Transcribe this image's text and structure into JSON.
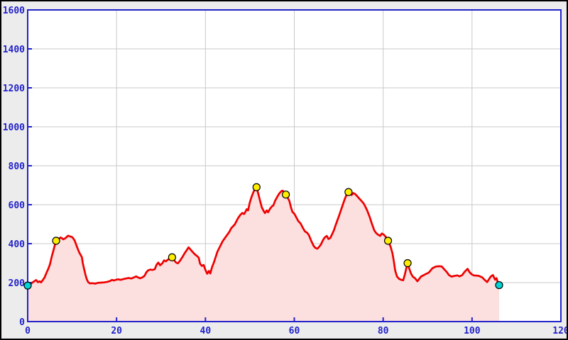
{
  "chart_data": {
    "type": "area",
    "title": "",
    "xlabel": "",
    "ylabel": "",
    "xlim": [
      0,
      120
    ],
    "ylim": [
      0,
      1600
    ],
    "x_ticks": [
      0,
      20,
      40,
      60,
      80,
      100,
      120
    ],
    "y_ticks": [
      0,
      200,
      400,
      600,
      800,
      1000,
      1200,
      1400,
      1600
    ],
    "grid": true,
    "legend": "none",
    "series": [
      {
        "name": "elevation-profile",
        "points": [
          [
            0,
            185
          ],
          [
            0.4,
            190
          ],
          [
            0.8,
            196
          ],
          [
            1.3,
            204
          ],
          [
            1.9,
            213
          ],
          [
            2.3,
            202
          ],
          [
            2.7,
            207
          ],
          [
            3.0,
            201
          ],
          [
            3.4,
            213
          ],
          [
            3.8,
            227
          ],
          [
            4.2,
            249
          ],
          [
            4.6,
            269
          ],
          [
            5.0,
            293
          ],
          [
            5.4,
            332
          ],
          [
            5.8,
            366
          ],
          [
            6.1,
            392
          ],
          [
            6.4,
            415
          ],
          [
            6.7,
            420
          ],
          [
            7.1,
            426
          ],
          [
            7.4,
            432
          ],
          [
            7.7,
            428
          ],
          [
            8.0,
            422
          ],
          [
            8.4,
            427
          ],
          [
            8.8,
            435
          ],
          [
            9.1,
            441
          ],
          [
            9.5,
            437
          ],
          [
            9.9,
            435
          ],
          [
            10.2,
            429
          ],
          [
            10.6,
            415
          ],
          [
            11.0,
            390
          ],
          [
            11.3,
            372
          ],
          [
            11.6,
            355
          ],
          [
            11.9,
            343
          ],
          [
            12.2,
            330
          ],
          [
            12.4,
            300
          ],
          [
            12.7,
            270
          ],
          [
            13.0,
            240
          ],
          [
            13.3,
            218
          ],
          [
            13.6,
            203
          ],
          [
            14.0,
            196
          ],
          [
            14.6,
            197
          ],
          [
            15.2,
            195
          ],
          [
            15.8,
            199
          ],
          [
            16.5,
            200
          ],
          [
            17.2,
            201
          ],
          [
            17.9,
            204
          ],
          [
            18.5,
            208
          ],
          [
            19.0,
            214
          ],
          [
            19.4,
            211
          ],
          [
            19.9,
            215
          ],
          [
            20.4,
            217
          ],
          [
            20.9,
            214
          ],
          [
            21.5,
            218
          ],
          [
            22.1,
            221
          ],
          [
            22.7,
            224
          ],
          [
            23.3,
            221
          ],
          [
            23.9,
            227
          ],
          [
            24.4,
            232
          ],
          [
            24.8,
            227
          ],
          [
            25.3,
            222
          ],
          [
            25.8,
            227
          ],
          [
            26.3,
            235
          ],
          [
            26.7,
            253
          ],
          [
            27.1,
            263
          ],
          [
            27.6,
            267
          ],
          [
            28.1,
            265
          ],
          [
            28.6,
            269
          ],
          [
            29.0,
            292
          ],
          [
            29.4,
            303
          ],
          [
            29.8,
            289
          ],
          [
            30.3,
            299
          ],
          [
            30.7,
            314
          ],
          [
            31.1,
            309
          ],
          [
            31.5,
            317
          ],
          [
            31.9,
            322
          ],
          [
            32.5,
            330
          ],
          [
            32.9,
            317
          ],
          [
            33.4,
            303
          ],
          [
            33.8,
            299
          ],
          [
            34.3,
            313
          ],
          [
            34.8,
            331
          ],
          [
            35.3,
            350
          ],
          [
            35.8,
            367
          ],
          [
            36.2,
            381
          ],
          [
            36.6,
            371
          ],
          [
            37.1,
            358
          ],
          [
            37.6,
            346
          ],
          [
            38.1,
            337
          ],
          [
            38.5,
            328
          ],
          [
            38.8,
            297
          ],
          [
            39.2,
            286
          ],
          [
            39.6,
            291
          ],
          [
            40.0,
            266
          ],
          [
            40.4,
            246
          ],
          [
            40.8,
            260
          ],
          [
            41.1,
            247
          ],
          [
            41.5,
            280
          ],
          [
            41.9,
            303
          ],
          [
            42.3,
            331
          ],
          [
            42.7,
            359
          ],
          [
            43.1,
            377
          ],
          [
            43.5,
            395
          ],
          [
            43.9,
            413
          ],
          [
            44.4,
            430
          ],
          [
            44.9,
            445
          ],
          [
            45.4,
            461
          ],
          [
            45.8,
            479
          ],
          [
            46.2,
            489
          ],
          [
            46.6,
            498
          ],
          [
            47.0,
            516
          ],
          [
            47.4,
            533
          ],
          [
            47.9,
            549
          ],
          [
            48.3,
            558
          ],
          [
            48.7,
            552
          ],
          [
            49.0,
            564
          ],
          [
            49.3,
            577
          ],
          [
            49.6,
            571
          ],
          [
            50.0,
            612
          ],
          [
            50.4,
            641
          ],
          [
            50.9,
            670
          ],
          [
            51.5,
            690
          ],
          [
            51.9,
            656
          ],
          [
            52.3,
            620
          ],
          [
            52.7,
            586
          ],
          [
            53.1,
            568
          ],
          [
            53.4,
            557
          ],
          [
            53.8,
            571
          ],
          [
            54.1,
            561
          ],
          [
            54.5,
            578
          ],
          [
            54.9,
            590
          ],
          [
            55.3,
            597
          ],
          [
            55.7,
            621
          ],
          [
            56.1,
            638
          ],
          [
            56.6,
            657
          ],
          [
            57.1,
            670
          ],
          [
            57.4,
            672
          ],
          [
            57.7,
            664
          ],
          [
            58.1,
            652
          ],
          [
            58.5,
            637
          ],
          [
            58.9,
            619
          ],
          [
            59.3,
            583
          ],
          [
            59.6,
            562
          ],
          [
            60.0,
            554
          ],
          [
            60.4,
            537
          ],
          [
            60.9,
            516
          ],
          [
            61.4,
            504
          ],
          [
            61.9,
            482
          ],
          [
            62.4,
            463
          ],
          [
            62.9,
            456
          ],
          [
            63.3,
            443
          ],
          [
            63.8,
            415
          ],
          [
            64.3,
            391
          ],
          [
            64.7,
            379
          ],
          [
            65.2,
            374
          ],
          [
            65.6,
            384
          ],
          [
            66.0,
            396
          ],
          [
            66.4,
            416
          ],
          [
            66.8,
            431
          ],
          [
            67.3,
            440
          ],
          [
            67.7,
            424
          ],
          [
            68.1,
            429
          ],
          [
            68.5,
            448
          ],
          [
            68.9,
            468
          ],
          [
            69.3,
            495
          ],
          [
            69.7,
            520
          ],
          [
            70.1,
            545
          ],
          [
            70.5,
            572
          ],
          [
            70.9,
            598
          ],
          [
            71.3,
            625
          ],
          [
            71.7,
            648
          ],
          [
            72.2,
            665
          ],
          [
            72.5,
            657
          ],
          [
            72.9,
            650
          ],
          [
            73.3,
            660
          ],
          [
            73.7,
            655
          ],
          [
            74.1,
            645
          ],
          [
            74.6,
            632
          ],
          [
            75.1,
            620
          ],
          [
            75.6,
            607
          ],
          [
            76.0,
            590
          ],
          [
            76.4,
            571
          ],
          [
            77.0,
            535
          ],
          [
            77.5,
            500
          ],
          [
            78.0,
            468
          ],
          [
            78.4,
            455
          ],
          [
            78.8,
            447
          ],
          [
            79.3,
            440
          ],
          [
            79.7,
            452
          ],
          [
            80.1,
            447
          ],
          [
            80.6,
            435
          ],
          [
            81.1,
            415
          ],
          [
            81.7,
            383
          ],
          [
            82.1,
            350
          ],
          [
            82.4,
            310
          ],
          [
            82.7,
            262
          ],
          [
            83.1,
            232
          ],
          [
            83.6,
            219
          ],
          [
            84.1,
            214
          ],
          [
            84.5,
            212
          ],
          [
            84.9,
            243
          ],
          [
            85.2,
            273
          ],
          [
            85.5,
            300
          ],
          [
            85.9,
            270
          ],
          [
            86.3,
            245
          ],
          [
            86.7,
            230
          ],
          [
            87.2,
            222
          ],
          [
            87.7,
            207
          ],
          [
            88.5,
            231
          ],
          [
            89.5,
            243
          ],
          [
            90.3,
            252
          ],
          [
            91.1,
            274
          ],
          [
            91.9,
            283
          ],
          [
            92.6,
            284
          ],
          [
            93.2,
            283
          ],
          [
            93.8,
            267
          ],
          [
            94.3,
            255
          ],
          [
            94.8,
            239
          ],
          [
            95.4,
            231
          ],
          [
            96.0,
            234
          ],
          [
            96.7,
            237
          ],
          [
            97.2,
            232
          ],
          [
            97.8,
            239
          ],
          [
            98.3,
            255
          ],
          [
            99.0,
            271
          ],
          [
            99.4,
            255
          ],
          [
            99.9,
            243
          ],
          [
            100.4,
            237
          ],
          [
            101.0,
            236
          ],
          [
            101.5,
            235
          ],
          [
            102.3,
            227
          ],
          [
            102.8,
            215
          ],
          [
            103.4,
            203
          ],
          [
            104.2,
            231
          ],
          [
            104.7,
            239
          ],
          [
            105.2,
            215
          ],
          [
            105.5,
            223
          ],
          [
            105.8,
            202
          ],
          [
            106.1,
            187
          ]
        ]
      }
    ],
    "markers": {
      "peaks": [
        [
          6.4,
          415
        ],
        [
          32.5,
          330
        ],
        [
          51.5,
          690
        ],
        [
          58.1,
          652
        ],
        [
          72.2,
          665
        ],
        [
          81.1,
          415
        ],
        [
          85.5,
          300
        ]
      ],
      "endpoints": [
        [
          0,
          185
        ],
        [
          106.1,
          187
        ]
      ]
    },
    "colors": {
      "outer_background": "#ececec",
      "plot_background": "#ffffff",
      "grid": "#c9c9c9",
      "axis": "#2222cc",
      "tick_label": "#2222cc",
      "line": "#ee0000",
      "fill": "#fcdfdf",
      "peak_marker_fill": "#ffee00",
      "endpoint_marker_fill": "#00d5d5",
      "marker_stroke": "#000000",
      "image_border": "#000000"
    }
  }
}
